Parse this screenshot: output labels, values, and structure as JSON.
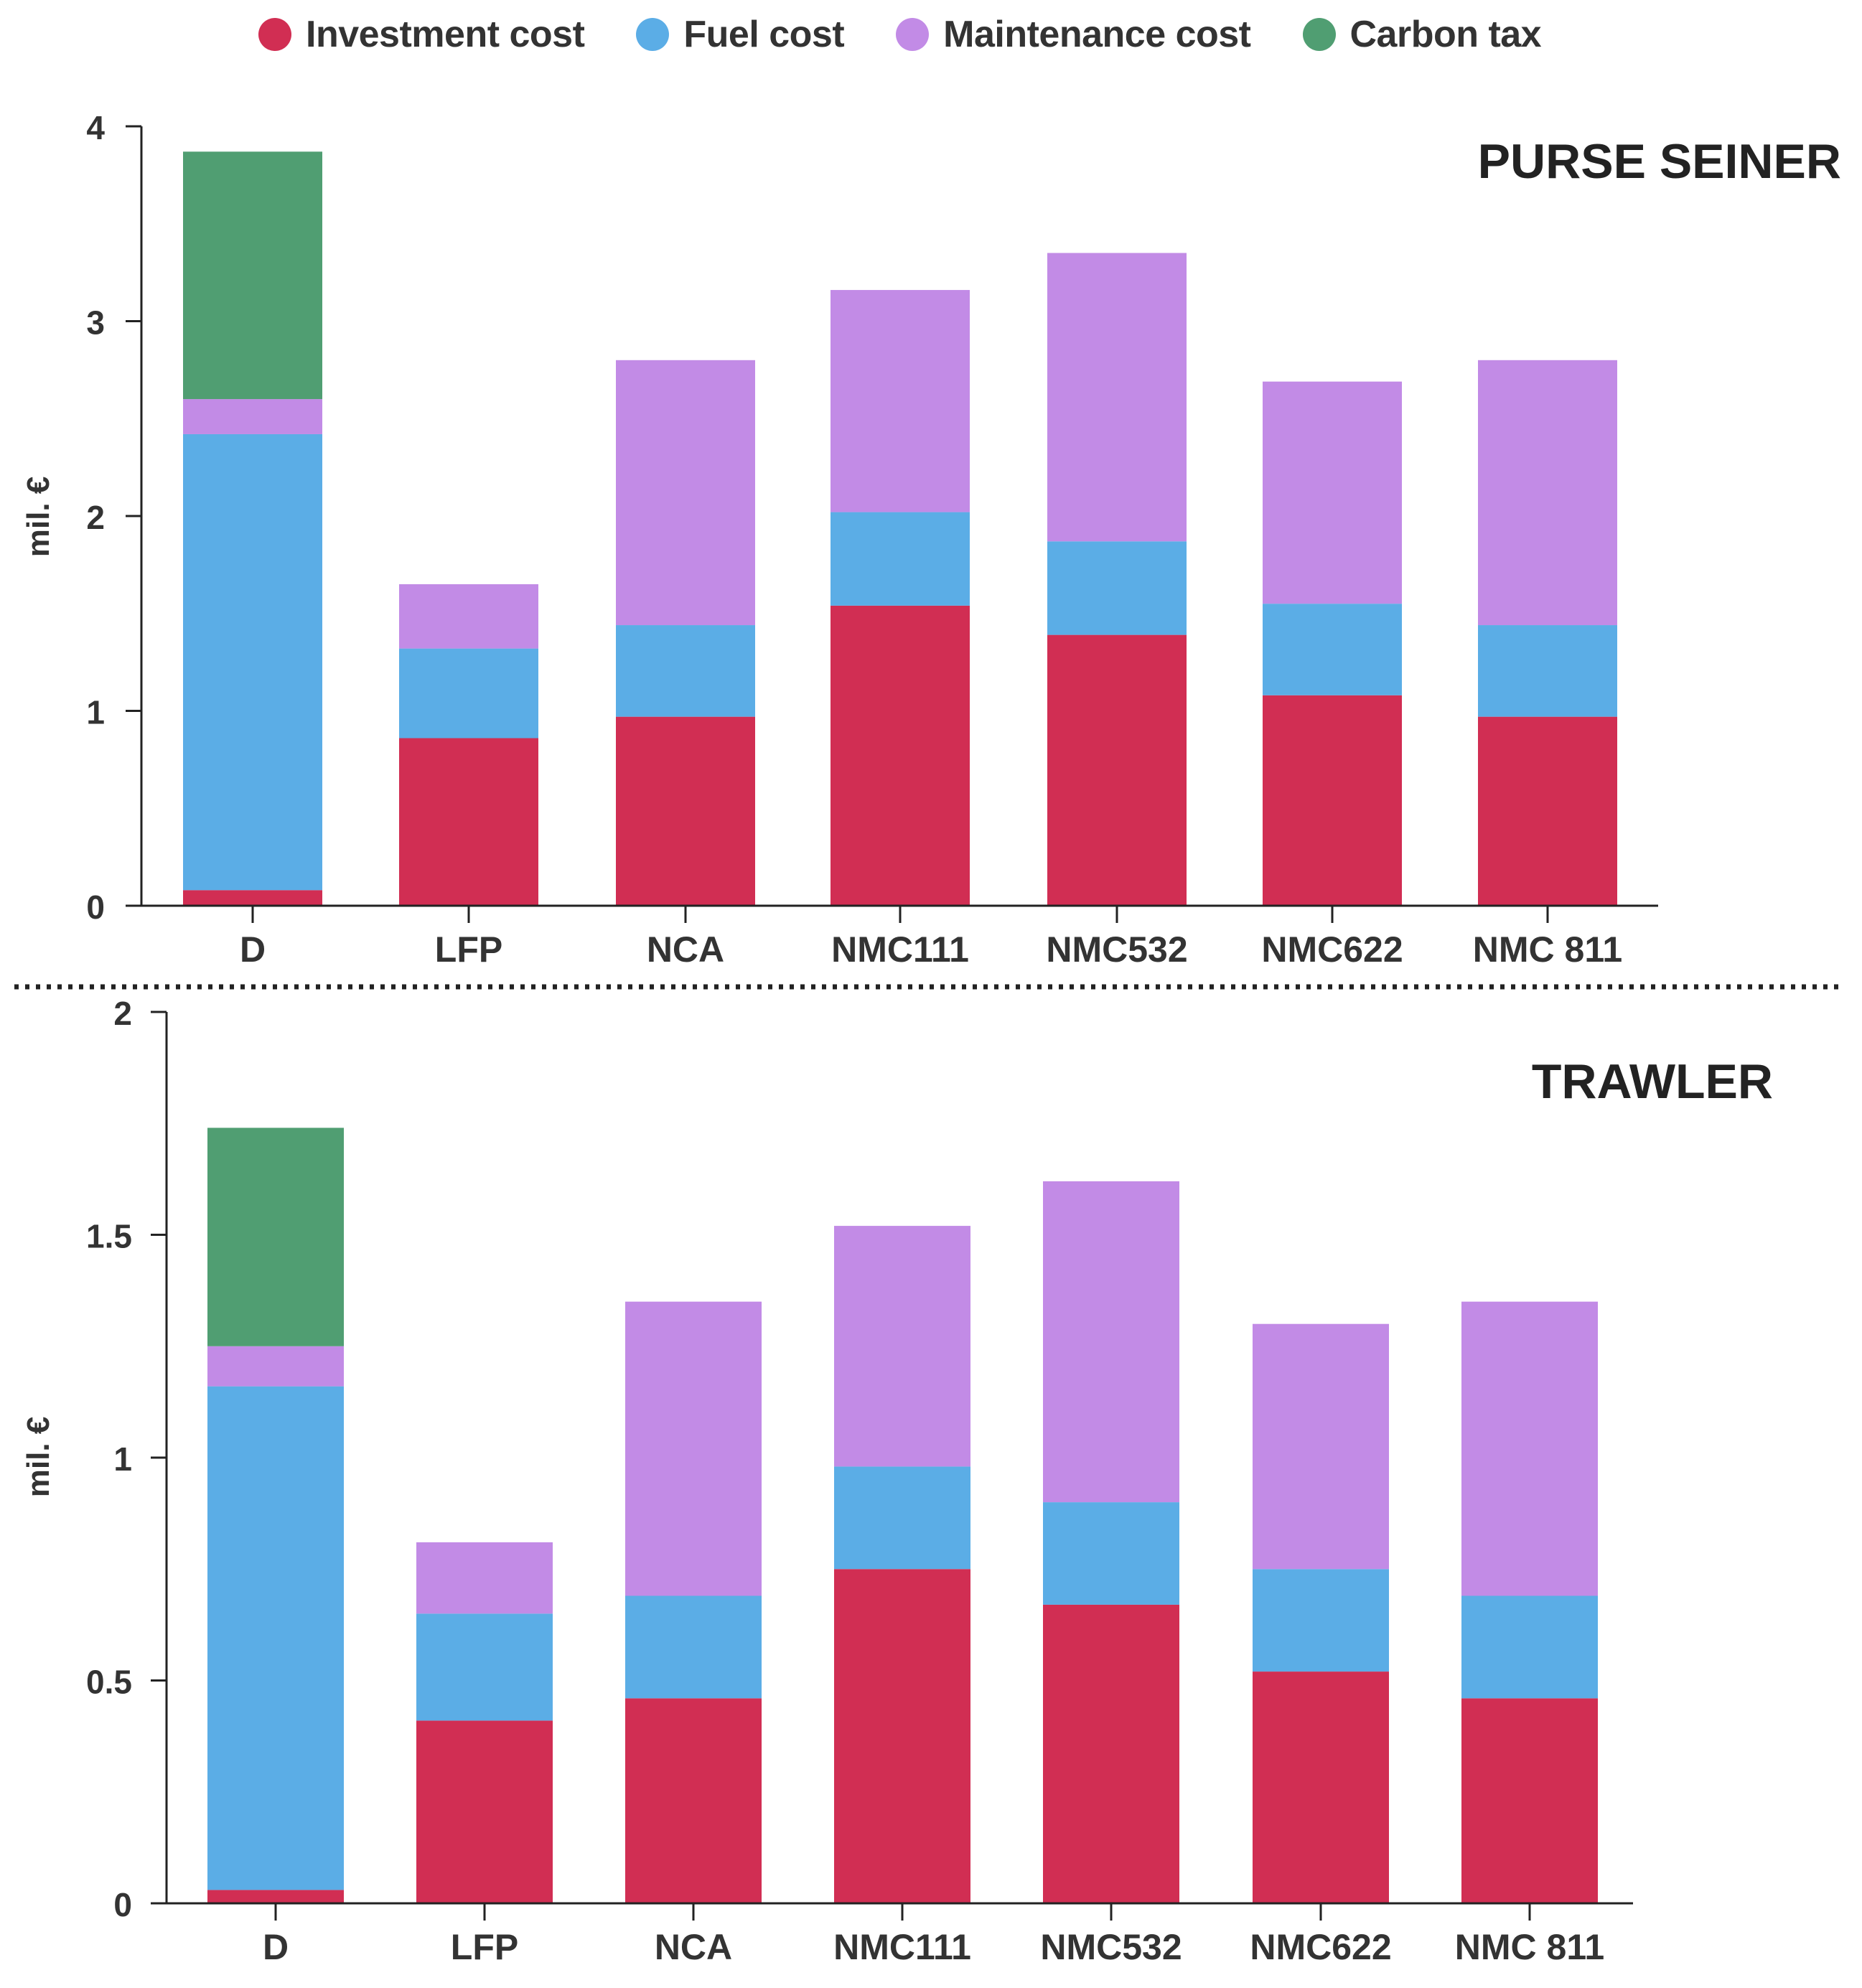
{
  "legend": {
    "items": [
      {
        "label": "Investment cost",
        "color": "#D12E53"
      },
      {
        "label": "Fuel cost",
        "color": "#5BADE6"
      },
      {
        "label": "Maintenance cost",
        "color": "#C28BE6"
      },
      {
        "label": "Carbon tax",
        "color": "#509E72"
      }
    ]
  },
  "chart_data": [
    {
      "type": "bar",
      "stacked": true,
      "title": "PURSE SEINER",
      "ylabel": "mil. €",
      "ylim": [
        0,
        4
      ],
      "yticks": [
        "0",
        "1",
        "2",
        "3",
        "4"
      ],
      "ytick_values": [
        0,
        1,
        2,
        3,
        4
      ],
      "categories": [
        "D",
        "LFP",
        "NCA",
        "NMC111",
        "NMC532",
        "NMC622",
        "NMC 811"
      ],
      "series": [
        {
          "name": "Investment cost",
          "values": [
            0.08,
            0.86,
            0.97,
            1.54,
            1.39,
            1.08,
            0.97
          ]
        },
        {
          "name": "Fuel cost",
          "values": [
            2.34,
            0.46,
            0.47,
            0.48,
            0.48,
            0.47,
            0.47
          ]
        },
        {
          "name": "Maintenance cost",
          "values": [
            0.18,
            0.33,
            1.36,
            1.14,
            1.48,
            1.14,
            1.36
          ]
        },
        {
          "name": "Carbon tax",
          "values": [
            1.27,
            0,
            0,
            0,
            0,
            0,
            0
          ]
        }
      ]
    },
    {
      "type": "bar",
      "stacked": true,
      "title": "TRAWLER",
      "ylabel": "mil. €",
      "ylim": [
        0,
        2
      ],
      "yticks": [
        "0",
        "0.5",
        "1",
        "1.5",
        "2"
      ],
      "ytick_values": [
        0,
        0.5,
        1,
        1.5,
        2
      ],
      "categories": [
        "D",
        "LFP",
        "NCA",
        "NMC111",
        "NMC532",
        "NMC622",
        "NMC 811"
      ],
      "series": [
        {
          "name": "Investment cost",
          "values": [
            0.03,
            0.41,
            0.46,
            0.75,
            0.67,
            0.52,
            0.46
          ]
        },
        {
          "name": "Fuel cost",
          "values": [
            1.13,
            0.24,
            0.23,
            0.23,
            0.23,
            0.23,
            0.23
          ]
        },
        {
          "name": "Maintenance cost",
          "values": [
            0.09,
            0.16,
            0.66,
            0.54,
            0.72,
            0.55,
            0.66
          ]
        },
        {
          "name": "Carbon tax",
          "values": [
            0.49,
            0,
            0,
            0,
            0,
            0,
            0
          ]
        }
      ]
    }
  ]
}
